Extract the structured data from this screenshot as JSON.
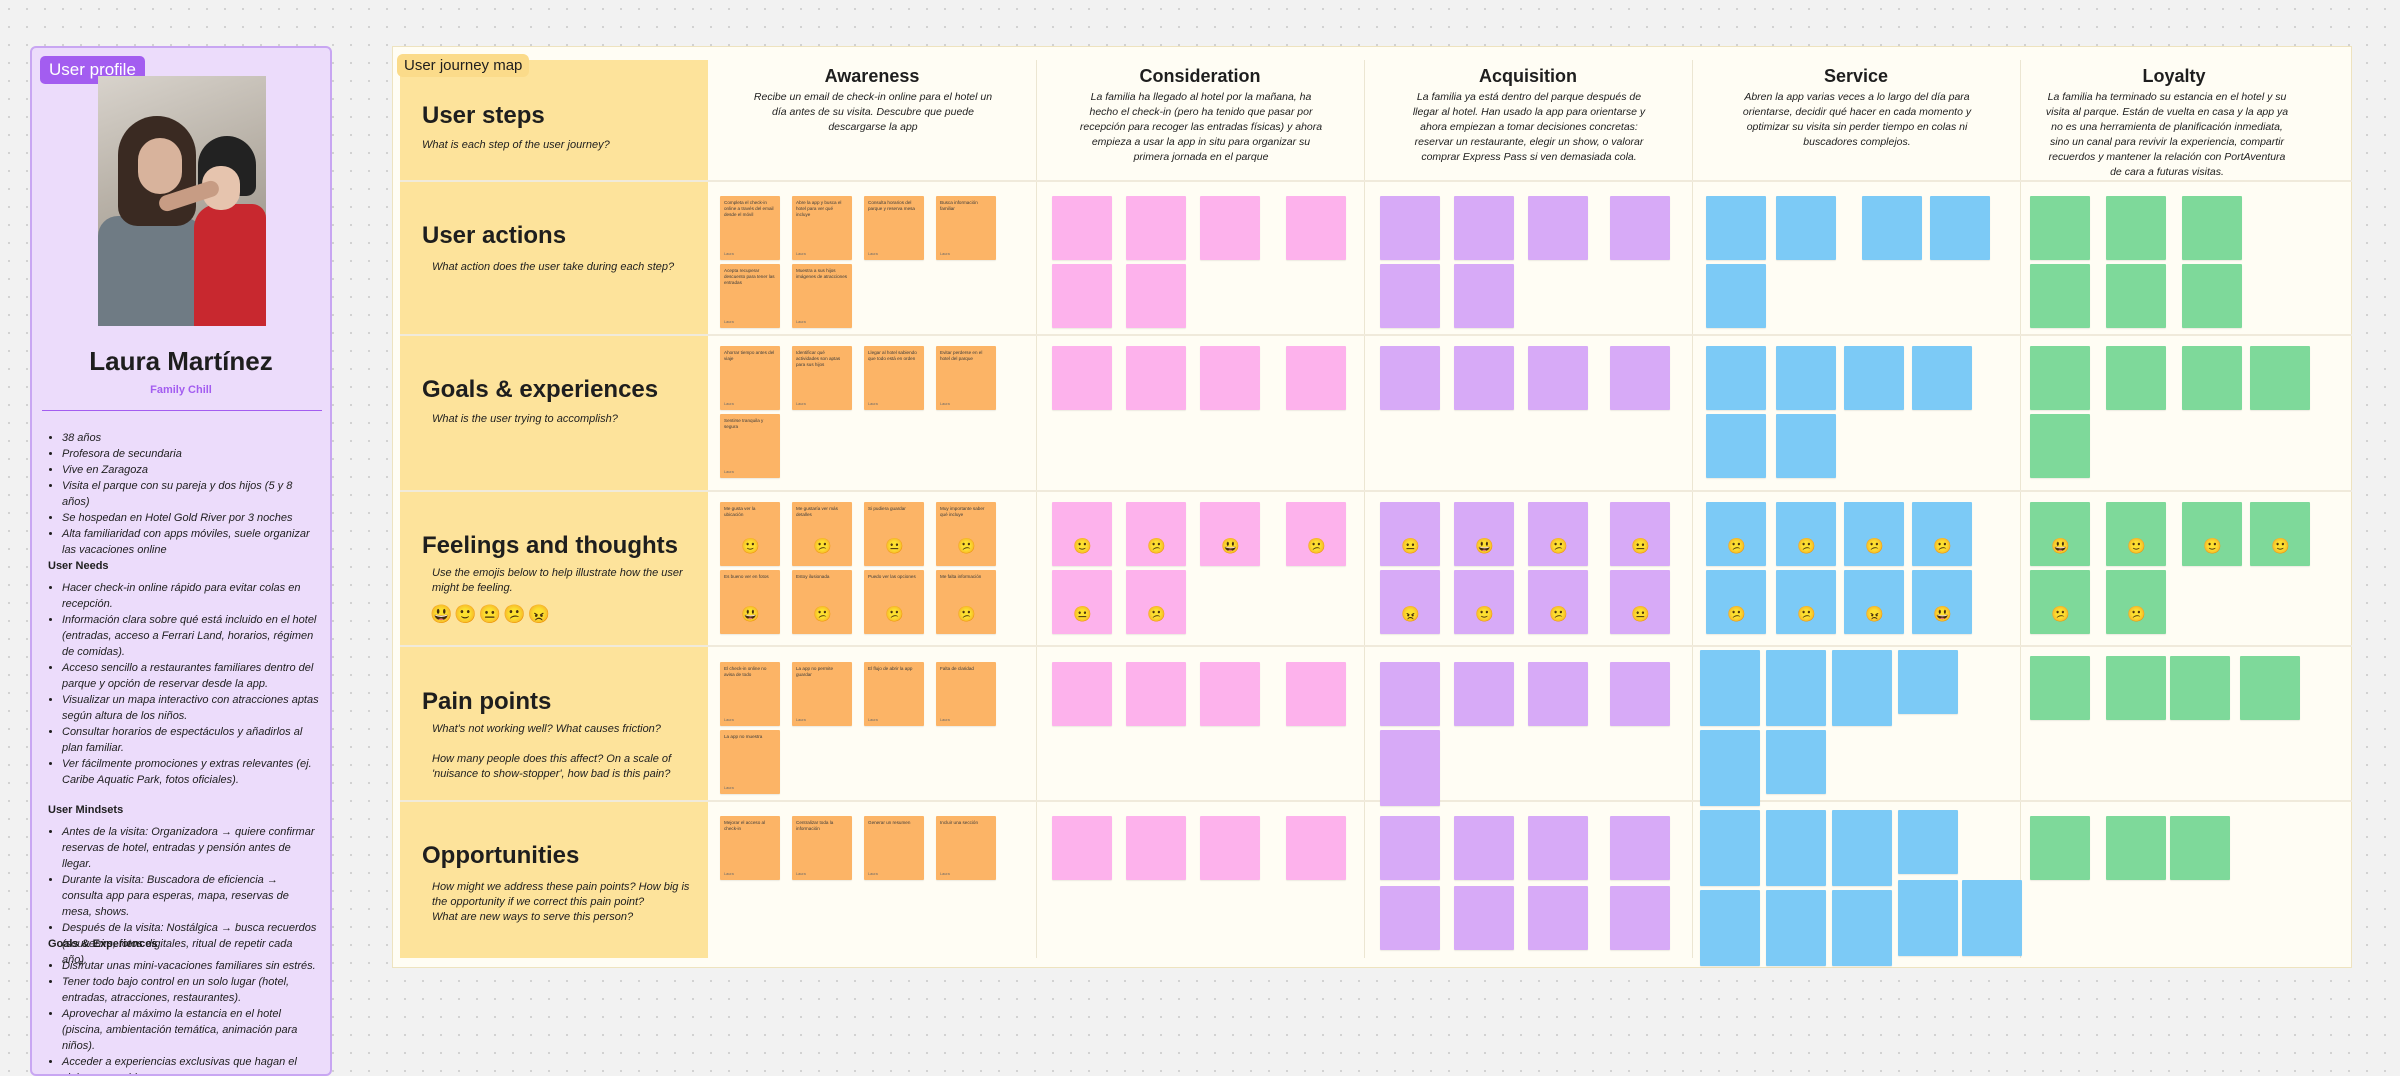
{
  "profile": {
    "tag": "User profile",
    "name": "Laura Martínez",
    "segment": "Family Chill",
    "facts": [
      "38 años",
      "Profesora de secundaria",
      "Vive en Zaragoza",
      "Visita el parque con su pareja y dos hijos (5 y 8 años)",
      "Se hospedan en Hotel Gold River por 3 noches",
      "Alta familiaridad con apps móviles, suele organizar las vacaciones online"
    ],
    "needs_title": "User Needs",
    "needs": [
      "Hacer check-in online rápido para evitar colas en recepción.",
      "Información clara sobre qué está incluido en el hotel (entradas, acceso a Ferrari Land, horarios, régimen de comidas).",
      "Acceso sencillo a restaurantes familiares dentro del parque y opción de reservar desde la app.",
      "Visualizar un mapa interactivo con atracciones aptas según altura de los niños.",
      "Consultar horarios de espectáculos y añadirlos al plan familiar.",
      "Ver fácilmente promociones y extras relevantes (ej. Caribe Aquatic Park, fotos oficiales)."
    ],
    "mindsets_title": "User Mindsets",
    "mindsets": [
      "Antes de la visita: Organizadora → quiere confirmar reservas de hotel, entradas y pensión antes de llegar.",
      "Durante la visita: Buscadora de eficiencia → consulta app para esperas, mapa, reservas de mesa, shows.",
      "Después de la visita: Nostálgica → busca recuerdos (souvenirs, fotos digitales, ritual de repetir cada año)."
    ],
    "goals_title": "Goals & Experiences",
    "goals": [
      "Disfrutar unas mini-vacaciones familiares sin estrés.",
      "Tener todo bajo control en un solo lugar (hotel, entradas, atracciones, restaurantes).",
      "Aprovechar al máximo la estancia en el hotel (piscina, ambientación temática, animación para niños).",
      "Acceder a experiencias exclusivas que hagan el viaje memorable."
    ]
  },
  "board": {
    "tag": "User journey map",
    "stages": [
      {
        "title": "Awareness",
        "desc": "Recibe un email de check-in online para el hotel un día antes de su visita. Descubre que puede descargarse la app"
      },
      {
        "title": "Consideration",
        "desc": "La familia ha llegado al hotel por la mañana, ha hecho el check-in (pero ha tenido que pasar por recepción para recoger las entradas físicas) y ahora empieza a usar la app in situ para organizar su primera jornada en el parque"
      },
      {
        "title": "Acquisition",
        "desc": "La familia ya está dentro del parque después de llegar al hotel. Han usado la app para orientarse y ahora empiezan a tomar decisiones concretas: reservar un restaurante, elegir un show, o valorar comprar Express Pass si ven demasiada cola."
      },
      {
        "title": "Service",
        "desc": "Abren la app varias veces a lo largo del día para orientarse, decidir qué hacer en cada momento y optimizar su visita sin perder tiempo en colas ni buscadores complejos."
      },
      {
        "title": "Loyalty",
        "desc": "La familia ha terminado su estancia en el hotel y su visita al parque. Están de vuelta en casa y la app ya no es una herramienta de planificación inmediata, sino un canal para revivir la experiencia, compartir recuerdos y mantener la relación con PortAventura de cara a futuras visitas."
      }
    ],
    "rows": [
      {
        "title": "User steps",
        "sub": "What is each step of the user journey?"
      },
      {
        "title": "User actions",
        "sub": "What action does the user take during each step?"
      },
      {
        "title": "Goals & experiences",
        "sub": "What is the user trying to accomplish?"
      },
      {
        "title": "Feelings and thoughts",
        "sub": "Use the emojis below to help illustrate how the user might be feeling."
      },
      {
        "title": "Pain points",
        "sub": "What's not working well? What causes friction?\n\nHow many people does this affect? On a scale of 'nuisance to show-stopper', how bad is this pain?"
      },
      {
        "title": "Opportunities",
        "sub": "How might we address these pain points? How big is the opportunity if we correct this pain point?\nWhat are new ways to serve this person?"
      }
    ],
    "emoji_scale": "😃🙂😐😕😠",
    "note_footer": "Laura",
    "notes": {
      "awareness": {
        "actions": [
          "Completa el check-in online a través del email desde el móvil",
          "Abre la app y busca el hotel para ver qué incluye",
          "Consulta horarios del parque y reserva mesa",
          "Busca información familiar",
          "Acepta recuperar descuento para tener las entradas",
          "Muestra a sus hijos imágenes de atracciones"
        ],
        "goals": [
          "Ahorrar tiempo antes del viaje",
          "Identificar qué actividades son aptas para sus hijos",
          "Llegar al hotel sabiendo que todo está en orden",
          "Evitar perderse en el hotel del parque",
          "Sentirse tranquila y segura"
        ],
        "feelings": [
          "Me gusta ver la ubicación",
          "Me gustaría ver más detalles",
          "Si pudiera guardar",
          "Muy importante saber qué incluye",
          "Es bueno ver en fotos",
          "Estoy ilusionada",
          "Puedo ver las opciones",
          "Me falta información"
        ],
        "pains": [
          "El check-in online no avisa de todo",
          "La app no permite guardar",
          "El flujo de abrir la app",
          "Falta de claridad",
          "La app no muestra"
        ],
        "opps": [
          "Mejorar el acceso al check-in",
          "Centralizar toda la información",
          "Generar un resumen",
          "Incluir una sección"
        ]
      }
    }
  }
}
